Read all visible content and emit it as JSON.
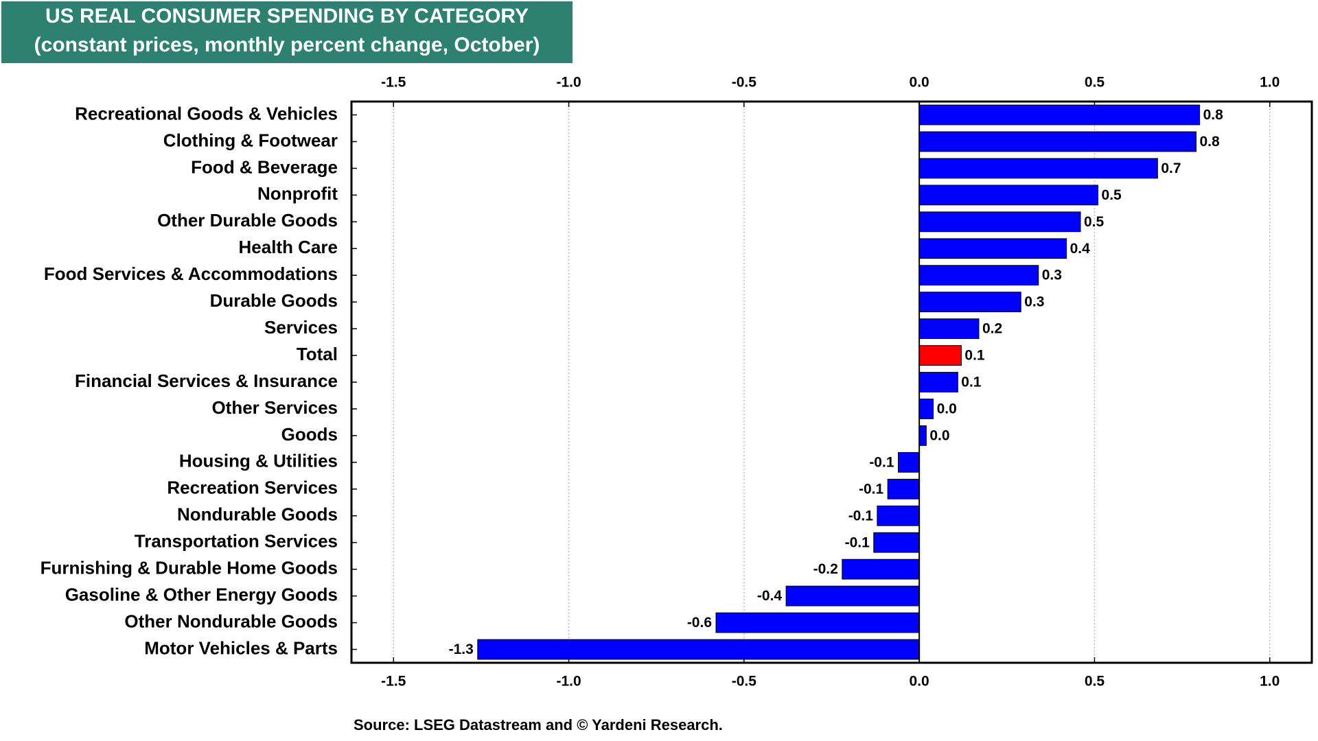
{
  "chart_data": {
    "type": "hbar",
    "title": "US REAL CONSUMER SPENDING BY CATEGORY",
    "subtitle": "(constant prices, monthly percent change, October)",
    "source": "Source: LSEG Datastream and © Yardeni Research.",
    "categories": [
      "Recreational Goods & Vehicles",
      "Clothing & Footwear",
      "Food & Beverage",
      "Nonprofit",
      "Other Durable Goods",
      "Health Care",
      "Food Services & Accommodations",
      "Durable Goods",
      "Services",
      "Total",
      "Financial Services & Insurance",
      "Other Services",
      "Goods",
      "Housing & Utilities",
      "Recreation Services",
      "Nondurable Goods",
      "Transportation Services",
      "Furnishing & Durable Home Goods",
      "Gasoline & Other Energy Goods",
      "Other Nondurable Goods",
      "Motor Vehicles & Parts"
    ],
    "values": [
      0.8,
      0.79,
      0.68,
      0.51,
      0.46,
      0.42,
      0.34,
      0.29,
      0.17,
      0.12,
      0.11,
      0.04,
      0.02,
      -0.06,
      -0.09,
      -0.12,
      -0.13,
      -0.22,
      -0.38,
      -0.58,
      -1.26
    ],
    "value_labels": [
      "0.8",
      "0.8",
      "0.7",
      "0.5",
      "0.5",
      "0.4",
      "0.3",
      "0.3",
      "0.2",
      "0.1",
      "0.1",
      "0.0",
      "0.0",
      "-0.1",
      "-0.1",
      "-0.1",
      "-0.1",
      "-0.2",
      "-0.4",
      "-0.6",
      "-1.3"
    ],
    "colors": [
      "#0000ff",
      "#0000ff",
      "#0000ff",
      "#0000ff",
      "#0000ff",
      "#0000ff",
      "#0000ff",
      "#0000ff",
      "#0000ff",
      "#ff0000",
      "#0000ff",
      "#0000ff",
      "#0000ff",
      "#0000ff",
      "#0000ff",
      "#0000ff",
      "#0000ff",
      "#0000ff",
      "#0000ff",
      "#0000ff",
      "#0000ff"
    ],
    "xlim": [
      -1.62,
      1.12
    ],
    "xticks": [
      -1.5,
      {
        "value": -1,
        "label": "-1.0"
      },
      -0.5,
      {
        "value": 0,
        "label": "0.0"
      },
      0.5,
      {
        "value": 1,
        "label": "1.0"
      }
    ],
    "grid": true
  }
}
